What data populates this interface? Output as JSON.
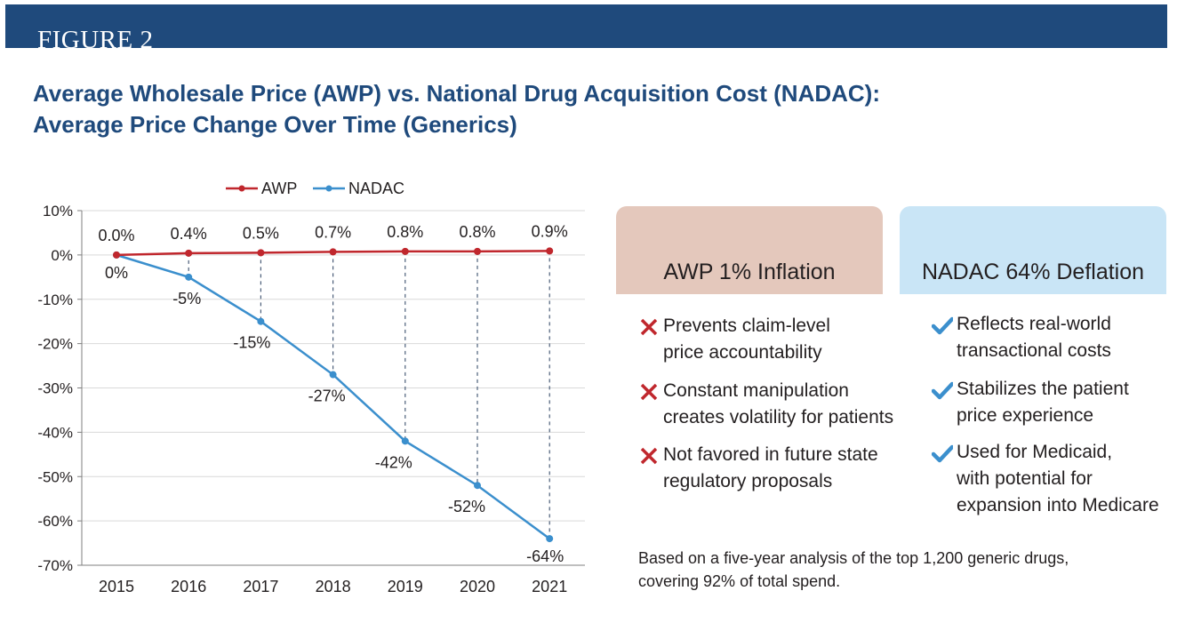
{
  "figure_label": "FIGURE 2",
  "title_lines": [
    "Average Wholesale Price (AWP) vs. National Drug Acquisition Cost (NADAC):",
    "Average Price Change Over Time (Generics)"
  ],
  "colors": {
    "banner": "#1f4a7c",
    "title": "#1f4a7c",
    "awp": "#c0272d",
    "nadac": "#3b8fcd",
    "awp_panel": "#e4c8bc",
    "nadac_panel": "#c9e5f6",
    "cross": "#c0272d",
    "check": "#3b8fcd"
  },
  "chart_data": {
    "type": "line",
    "x": [
      "2015",
      "2016",
      "2017",
      "2018",
      "2019",
      "2020",
      "2021"
    ],
    "series": [
      {
        "name": "AWP",
        "values": [
          0.0,
          0.4,
          0.5,
          0.7,
          0.8,
          0.8,
          0.9
        ],
        "labels": [
          "0.0%",
          "0.4%",
          "0.5%",
          "0.7%",
          "0.8%",
          "0.8%",
          "0.9%"
        ]
      },
      {
        "name": "NADAC",
        "values": [
          0,
          -5,
          -15,
          -27,
          -42,
          -52,
          -64
        ],
        "labels": [
          "0%",
          "-5%",
          "-15%",
          "-27%",
          "-42%",
          "-52%",
          "-64%"
        ]
      }
    ],
    "y_ticks": [
      "10%",
      "0%",
      "-10%",
      "-20%",
      "-30%",
      "-40%",
      "-50%",
      "-60%",
      "-70%"
    ],
    "ylim": [
      -70,
      10
    ],
    "legend_placement": "top",
    "grid": true,
    "drop_lines": "dashed from AWP to NADAC at each year"
  },
  "awp_panel": {
    "heading": "AWP 1% Inflation",
    "items": [
      {
        "icon": "cross-icon",
        "text": "Prevents claim-level\nprice accountability"
      },
      {
        "icon": "cross-icon",
        "text": "Constant manipulation\ncreates volatility for patients"
      },
      {
        "icon": "cross-icon",
        "text": "Not favored in future state\nregulatory proposals"
      }
    ]
  },
  "nadac_panel": {
    "heading": "NADAC 64% Deflation",
    "items": [
      {
        "icon": "check-icon",
        "text": "Reflects real-world\ntransactional costs"
      },
      {
        "icon": "check-icon",
        "text": "Stabilizes the patient\nprice experience"
      },
      {
        "icon": "check-icon",
        "text": "Used for Medicaid,\nwith potential for\nexpansion into Medicare"
      }
    ]
  },
  "footnote": "Based on a five-year analysis of the top 1,200 generic drugs,\ncovering 92% of total spend."
}
